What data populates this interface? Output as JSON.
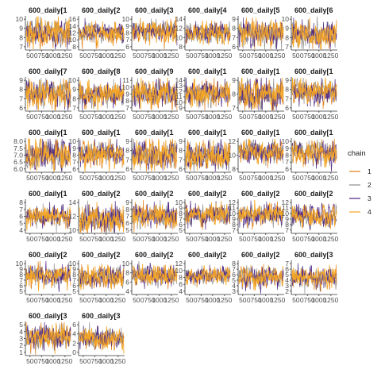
{
  "chart_data": {
    "type": "line",
    "description_note": "",
    "legend": {
      "title": "chain",
      "entries": [
        {
          "label": "1",
          "color": "#e07b10"
        },
        {
          "label": "2",
          "color": "#8d8d8d"
        },
        {
          "label": "3",
          "color": "#4b2582"
        },
        {
          "label": "4",
          "color": "#f5a623"
        }
      ],
      "position": "right"
    },
    "x_tick_labels": [
      "50",
      "0750",
      "1000",
      "1250"
    ],
    "x_range": [
      1,
      1250
    ],
    "panels": [
      {
        "title": "600_daily[1",
        "y_ticks": [
          "10",
          "9",
          "8",
          "7"
        ],
        "center": 8.5,
        "spread": 0.8
      },
      {
        "title": "600_daily[2",
        "y_ticks": [
          "16",
          "14",
          "12",
          "10",
          "8"
        ],
        "center": 12,
        "spread": 1.5
      },
      {
        "title": "600_daily[3",
        "y_ticks": [
          "10",
          "9",
          "8",
          "7",
          "6"
        ],
        "center": 8.3,
        "spread": 0.8
      },
      {
        "title": "600_daily[4",
        "y_ticks": [
          "14",
          "12",
          "10",
          "8"
        ],
        "center": 11,
        "spread": 1.2
      },
      {
        "title": "600_daily[5",
        "y_ticks": [
          "9",
          "8",
          "7",
          "6"
        ],
        "center": 7.5,
        "spread": 0.7
      },
      {
        "title": "600_daily[6",
        "y_ticks": [
          "10",
          "9",
          "8",
          "7"
        ],
        "center": 8.3,
        "spread": 0.7
      },
      {
        "title": "600_daily[7",
        "y_ticks": [
          "9",
          "8",
          "7",
          "6"
        ],
        "center": 7.5,
        "spread": 0.8
      },
      {
        "title": "600_daily[8",
        "y_ticks": [
          "10",
          "9",
          "8",
          "7"
        ],
        "center": 8.5,
        "spread": 0.7
      },
      {
        "title": "600_daily[9",
        "y_ticks": [
          "11",
          "10",
          "9",
          "8",
          "7"
        ],
        "center": 9,
        "spread": 1.0
      },
      {
        "title": "600_daily[1",
        "y_ticks": [
          "14",
          "13",
          "12",
          "11",
          "10",
          "9"
        ],
        "center": 11.5,
        "spread": 1.2
      },
      {
        "title": "600_daily[1",
        "y_ticks": [
          "9",
          "8",
          "7"
        ],
        "center": 8,
        "spread": 0.6
      },
      {
        "title": "600_daily[1",
        "y_ticks": [
          "9",
          "8",
          "7",
          "6"
        ],
        "center": 7.8,
        "spread": 0.7
      },
      {
        "title": "600_daily[1",
        "y_ticks": [
          "8.0",
          "7.5",
          "7.0",
          "6.5",
          "6.0"
        ],
        "center": 7.0,
        "spread": 0.55
      },
      {
        "title": "600_daily[1",
        "y_ticks": [
          "10",
          "9",
          "8",
          "7",
          "6"
        ],
        "center": 8.2,
        "spread": 0.9
      },
      {
        "title": "600_daily[1",
        "y_ticks": [
          "9",
          "8",
          "7",
          "6"
        ],
        "center": 7.5,
        "spread": 0.8
      },
      {
        "title": "600_daily[1",
        "y_ticks": [
          "9",
          "8",
          "7",
          "6"
        ],
        "center": 7.5,
        "spread": 0.8
      },
      {
        "title": "600_daily[1",
        "y_ticks": [
          "12",
          "10",
          "8"
        ],
        "center": 10.5,
        "spread": 0.9
      },
      {
        "title": "600_daily[1",
        "y_ticks": [
          "10",
          "9",
          "8",
          "7",
          "6"
        ],
        "center": 8.3,
        "spread": 0.9
      },
      {
        "title": "600_daily[1",
        "y_ticks": [
          "8",
          "7",
          "6",
          "5",
          "4"
        ],
        "center": 6,
        "spread": 0.8
      },
      {
        "title": "600_daily[2",
        "y_ticks": [
          "14",
          "12",
          "10"
        ],
        "center": 11.5,
        "spread": 1.0
      },
      {
        "title": "600_daily[2",
        "y_ticks": [
          "9",
          "8",
          "7",
          "6",
          "5"
        ],
        "center": 7,
        "spread": 0.9
      },
      {
        "title": "600_daily[2",
        "y_ticks": [
          "10",
          "9",
          "8",
          "7",
          "6",
          "5"
        ],
        "center": 7.8,
        "spread": 1.0
      },
      {
        "title": "600_daily[2",
        "y_ticks": [
          "12",
          "11",
          "10",
          "9",
          "8",
          "7"
        ],
        "center": 9.8,
        "spread": 1.0
      },
      {
        "title": "600_daily[2",
        "y_ticks": [
          "12",
          "11",
          "10",
          "9",
          "8",
          "7"
        ],
        "center": 9.5,
        "spread": 1.0
      },
      {
        "title": "600_daily[2",
        "y_ticks": [
          "10",
          "9",
          "8",
          "7",
          "6",
          "5"
        ],
        "center": 7.8,
        "spread": 1.0
      },
      {
        "title": "600_daily[2",
        "y_ticks": [
          "10",
          "9",
          "8",
          "7",
          "6",
          "5"
        ],
        "center": 7.5,
        "spread": 1.0
      },
      {
        "title": "600_daily[2",
        "y_ticks": [
          "10",
          "8",
          "6",
          "4"
        ],
        "center": 7.5,
        "spread": 1.2
      },
      {
        "title": "600_daily[2",
        "y_ticks": [
          "12",
          "10",
          "8",
          "6",
          "4"
        ],
        "center": 8.5,
        "spread": 1.3
      },
      {
        "title": "600_daily[2",
        "y_ticks": [
          "8",
          "7",
          "6",
          "5",
          "4",
          "3"
        ],
        "center": 5.5,
        "spread": 1.0
      },
      {
        "title": "600_daily[3",
        "y_ticks": [
          "7",
          "6",
          "5",
          "4",
          "3",
          "2"
        ],
        "center": 4.5,
        "spread": 1.0
      },
      {
        "title": "600_daily[3",
        "y_ticks": [
          "5",
          "4",
          "3",
          "2",
          "1"
        ],
        "center": 3.2,
        "spread": 0.9
      },
      {
        "title": "600_daily[3",
        "y_ticks": [
          "6",
          "4",
          "2",
          "0"
        ],
        "center": 3.0,
        "spread": 1.2
      }
    ]
  }
}
